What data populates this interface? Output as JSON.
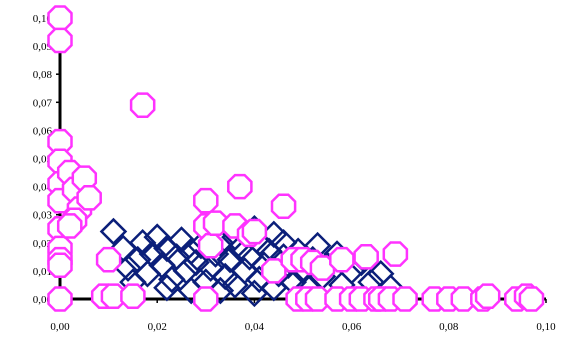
{
  "chart_data": {
    "type": "scatter",
    "title": "",
    "xlabel": "",
    "ylabel": "",
    "xlim": [
      0,
      0.1
    ],
    "ylim": [
      0,
      0.1
    ],
    "grid": false,
    "legend": "none",
    "x_ticks": [
      "0,00",
      "0,02",
      "0,04",
      "0,06",
      "0,08",
      "0,10"
    ],
    "y_ticks": [
      "0,00",
      "0,01",
      "0,02",
      "0,03",
      "0,04",
      "0,05",
      "0,06",
      "0,07",
      "0,08",
      "0,09",
      "0,10"
    ],
    "series": [
      {
        "marker": "diamond",
        "color": "#0b1f7a",
        "points": [
          [
            0.011,
            0.024
          ],
          [
            0.013,
            0.018
          ],
          [
            0.014,
            0.011
          ],
          [
            0.015,
            0.006
          ],
          [
            0.016,
            0.014
          ],
          [
            0.017,
            0.02
          ],
          [
            0.018,
            0.009
          ],
          [
            0.019,
            0.016
          ],
          [
            0.02,
            0.022
          ],
          [
            0.021,
            0.012
          ],
          [
            0.022,
            0.004
          ],
          [
            0.022,
            0.018
          ],
          [
            0.023,
            0.007
          ],
          [
            0.024,
            0.015
          ],
          [
            0.025,
            0.021
          ],
          [
            0.026,
            0.01
          ],
          [
            0.027,
            0.003
          ],
          [
            0.027,
            0.017
          ],
          [
            0.028,
            0.013
          ],
          [
            0.029,
            0.019
          ],
          [
            0.03,
            0.006
          ],
          [
            0.031,
            0.011
          ],
          [
            0.032,
            0.016
          ],
          [
            0.033,
            0.02
          ],
          [
            0.033,
            0.003
          ],
          [
            0.034,
            0.008
          ],
          [
            0.035,
            0.014
          ],
          [
            0.036,
            0.022
          ],
          [
            0.036,
            0.005
          ],
          [
            0.037,
            0.018
          ],
          [
            0.038,
            0.01
          ],
          [
            0.039,
            0.015
          ],
          [
            0.04,
            0.025
          ],
          [
            0.04,
            0.002
          ],
          [
            0.041,
            0.02
          ],
          [
            0.041,
            0.007
          ],
          [
            0.042,
            0.012
          ],
          [
            0.043,
            0.017
          ],
          [
            0.044,
            0.023
          ],
          [
            0.044,
            0.004
          ],
          [
            0.045,
            0.009
          ],
          [
            0.046,
            0.015
          ],
          [
            0.046,
            0.02
          ],
          [
            0.047,
            0.012
          ],
          [
            0.048,
            0.006
          ],
          [
            0.049,
            0.017
          ],
          [
            0.05,
            0.01
          ],
          [
            0.051,
            0.004
          ],
          [
            0.052,
            0.014
          ],
          [
            0.053,
            0.019
          ],
          [
            0.054,
            0.008
          ],
          [
            0.055,
            0.012
          ],
          [
            0.057,
            0.016
          ],
          [
            0.058,
            0.005
          ],
          [
            0.06,
            0.01
          ],
          [
            0.062,
            0.013
          ],
          [
            0.064,
            0.006
          ],
          [
            0.066,
            0.009
          ],
          [
            0.068,
            0.004
          ]
        ]
      },
      {
        "marker": "octagon",
        "color": "#ff33ff",
        "points": [
          [
            0,
            0.1
          ],
          [
            0,
            0.092
          ],
          [
            0,
            0.056
          ],
          [
            0,
            0.049
          ],
          [
            0,
            0.041
          ],
          [
            0,
            0.035
          ],
          [
            0,
            0.025
          ],
          [
            0,
            0.018
          ],
          [
            0,
            0.014
          ],
          [
            0,
            0.012
          ],
          [
            0,
            0
          ],
          [
            0.002,
            0.045
          ],
          [
            0.003,
            0.039
          ],
          [
            0.004,
            0.032
          ],
          [
            0.005,
            0.043
          ],
          [
            0.006,
            0.036
          ],
          [
            0.003,
            0.028
          ],
          [
            0.002,
            0.026
          ],
          [
            0.009,
            0.001
          ],
          [
            0.01,
            0.014
          ],
          [
            0.011,
            0.001
          ],
          [
            0.015,
            0.001
          ],
          [
            0.017,
            0.069
          ],
          [
            0.03,
            0.035
          ],
          [
            0.03,
            0.026
          ],
          [
            0.031,
            0.019
          ],
          [
            0.03,
            0
          ],
          [
            0.032,
            0.027
          ],
          [
            0.037,
            0.04
          ],
          [
            0.036,
            0.026
          ],
          [
            0.039,
            0.023
          ],
          [
            0.04,
            0.024
          ],
          [
            0.044,
            0.01
          ],
          [
            0.046,
            0.033
          ],
          [
            0.048,
            0.014
          ],
          [
            0.049,
            0
          ],
          [
            0.05,
            0.014
          ],
          [
            0.051,
            0
          ],
          [
            0.052,
            0.013
          ],
          [
            0.053,
            0
          ],
          [
            0.054,
            0.011
          ],
          [
            0.057,
            0
          ],
          [
            0.058,
            0.014
          ],
          [
            0.06,
            0
          ],
          [
            0.062,
            0
          ],
          [
            0.063,
            0.015
          ],
          [
            0.065,
            0
          ],
          [
            0.066,
            0
          ],
          [
            0.068,
            0
          ],
          [
            0.069,
            0.016
          ],
          [
            0.071,
            0
          ],
          [
            0.077,
            0
          ],
          [
            0.08,
            0
          ],
          [
            0.083,
            0
          ],
          [
            0.087,
            0
          ],
          [
            0.088,
            0.001
          ],
          [
            0.094,
            0
          ],
          [
            0.096,
            0.001
          ],
          [
            0.097,
            0
          ]
        ]
      }
    ]
  }
}
